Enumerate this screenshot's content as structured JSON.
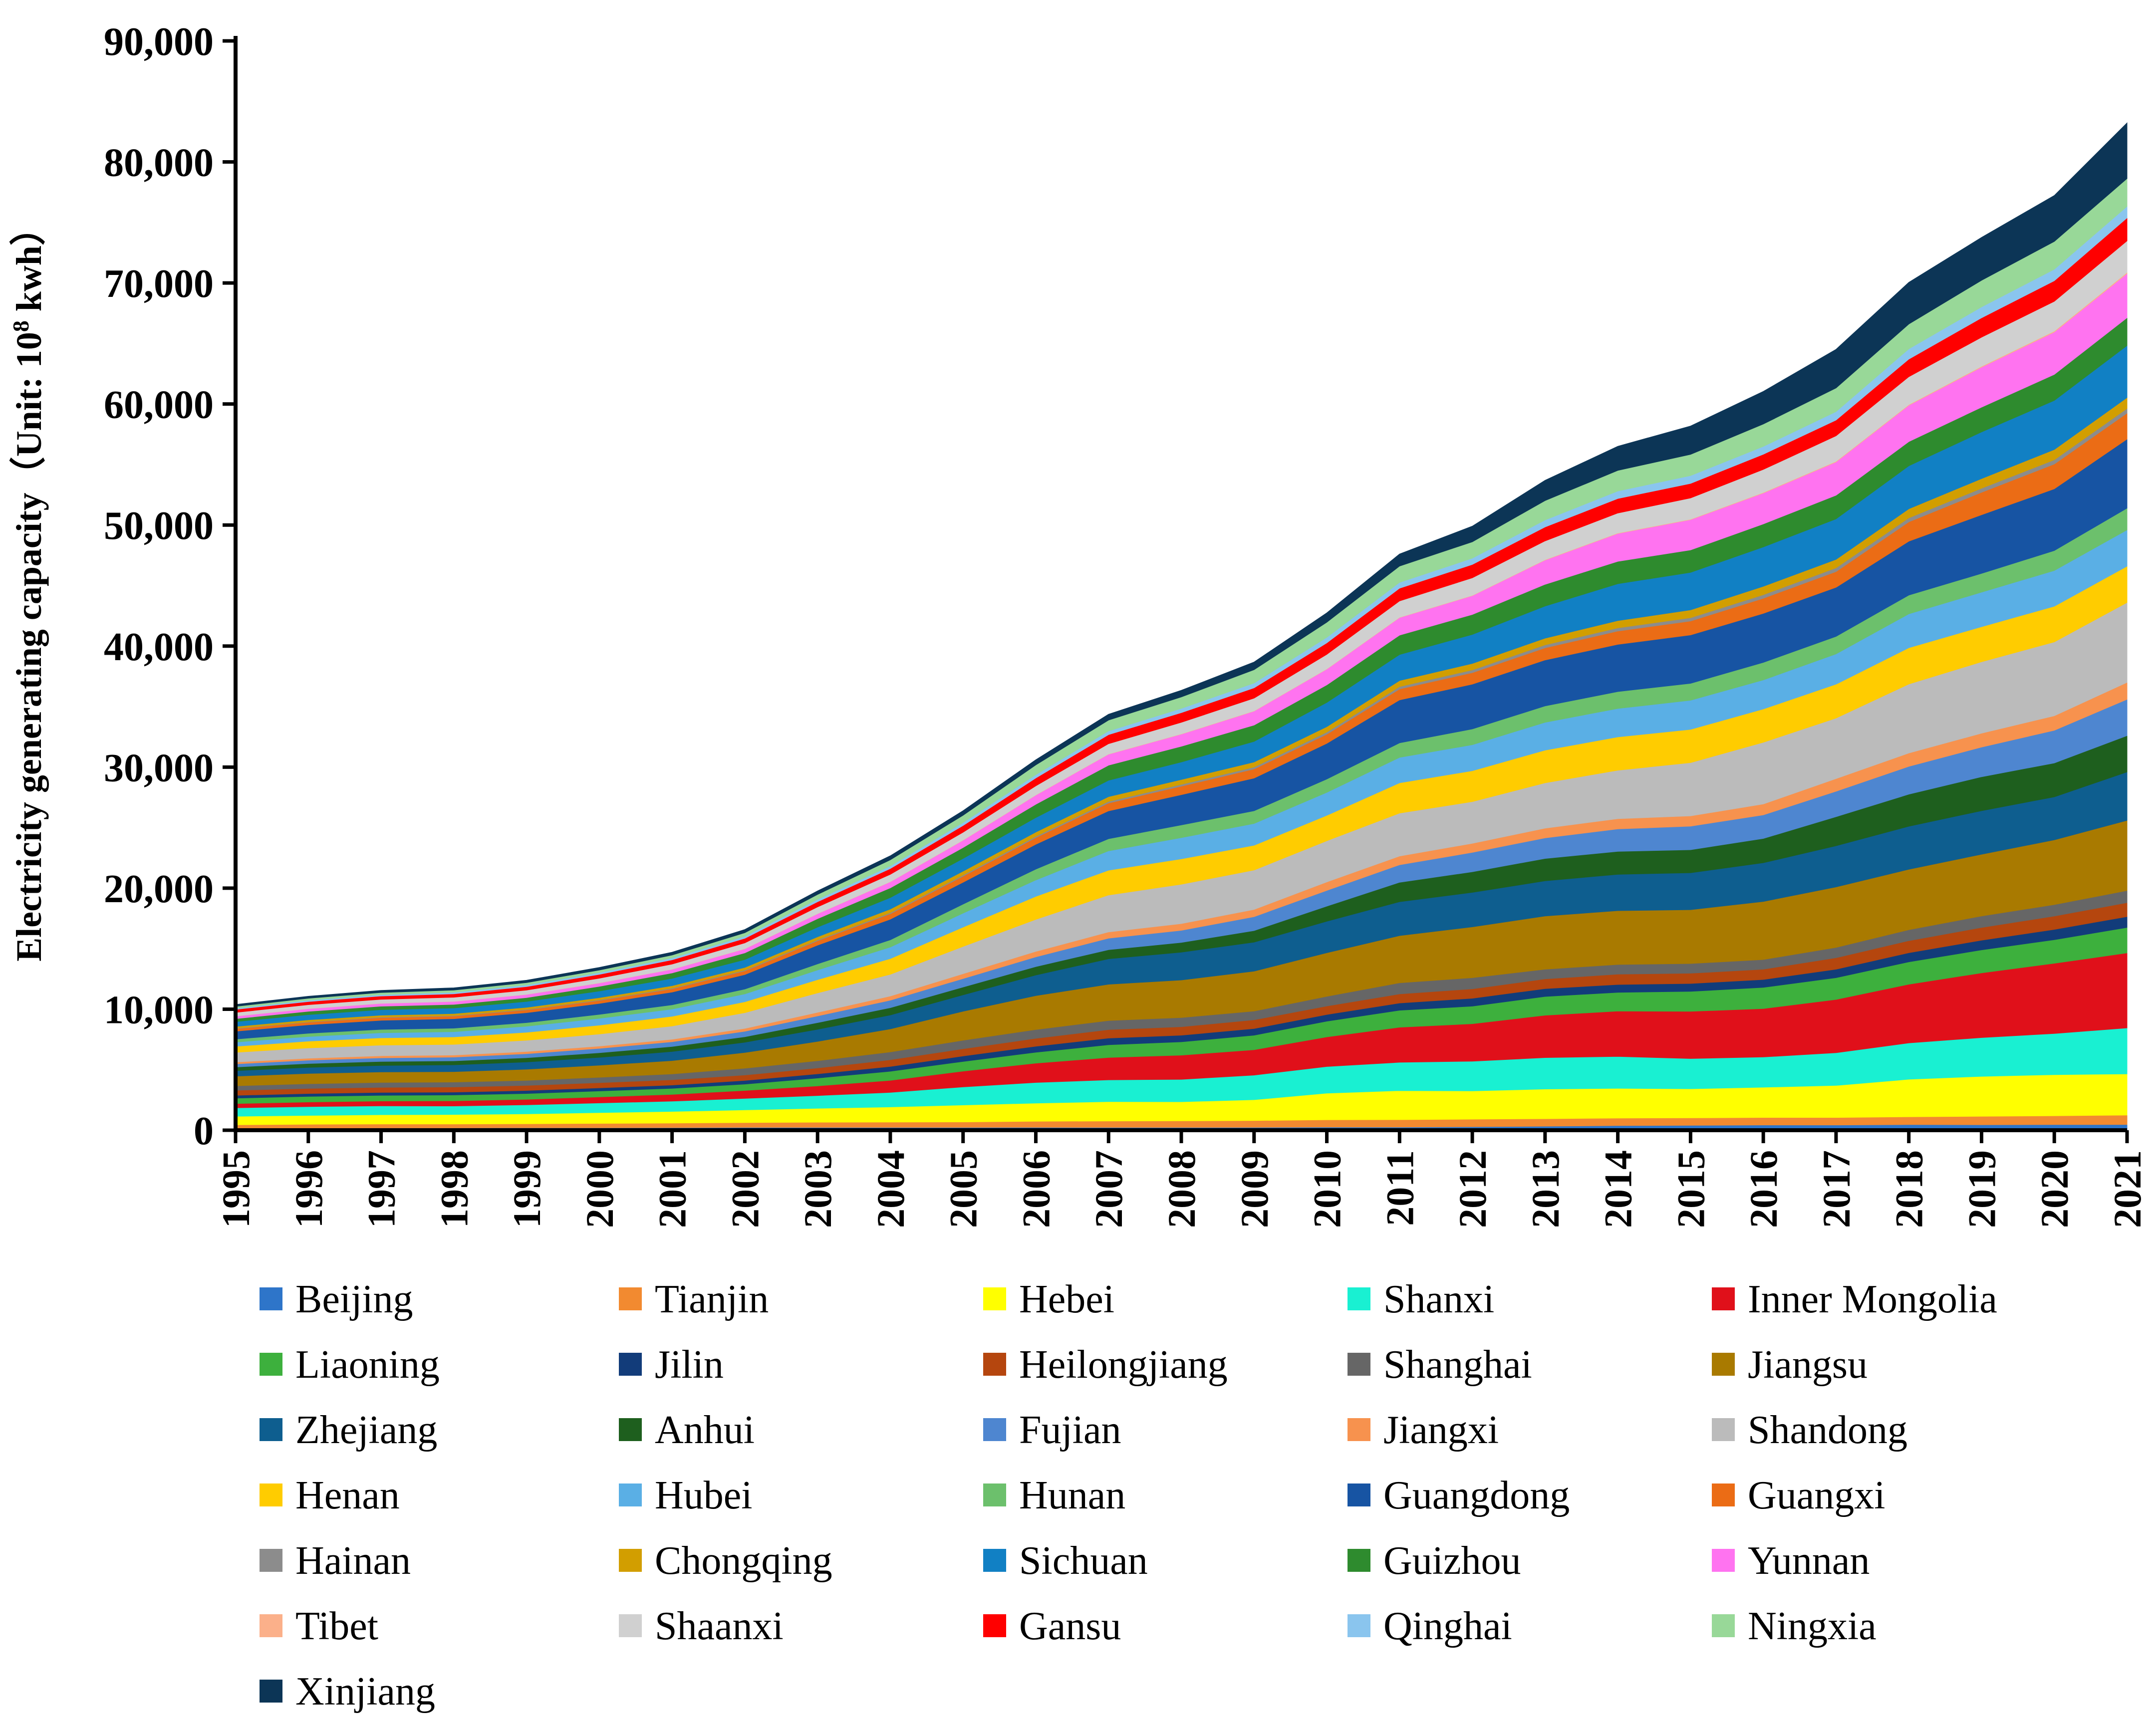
{
  "chart_data": {
    "type": "area",
    "stacked": true,
    "title": "",
    "xlabel": "",
    "ylabel": "Electricity generating capacity（Unit: 10",
    "ylabel_sup": "8",
    "ylabel_tail": " kwh）",
    "ylim": [
      0,
      90000
    ],
    "yticks": [
      0,
      10000,
      20000,
      30000,
      40000,
      50000,
      60000,
      70000,
      80000,
      90000
    ],
    "ytick_labels": [
      "0",
      "10,000",
      "20,000",
      "30,000",
      "40,000",
      "50,000",
      "60,000",
      "70,000",
      "80,000",
      "90,000"
    ],
    "grid": false,
    "legend_position": "bottom",
    "x": [
      "1995",
      "1996",
      "1997",
      "1998",
      "1999",
      "2000",
      "2001",
      "2002",
      "2003",
      "2004",
      "2005",
      "2006",
      "2007",
      "2008",
      "2009",
      "2010",
      "2011",
      "2012",
      "2013",
      "2014",
      "2015",
      "2016",
      "2017",
      "2018",
      "2019",
      "2020",
      "2021"
    ],
    "series": [
      {
        "name": "Beijing",
        "color": "#2E75C9",
        "values": [
          170,
          180,
          190,
          190,
          200,
          200,
          210,
          230,
          230,
          230,
          230,
          240,
          230,
          230,
          240,
          260,
          260,
          290,
          330,
          380,
          400,
          430,
          430,
          460,
          450,
          460,
          470
        ]
      },
      {
        "name": "Tianjin",
        "color": "#F28A30",
        "values": [
          280,
          310,
          320,
          320,
          330,
          360,
          380,
          400,
          430,
          440,
          450,
          500,
          530,
          540,
          560,
          600,
          610,
          620,
          620,
          620,
          620,
          620,
          620,
          650,
          700,
          730,
          780
        ]
      },
      {
        "name": "Hebei",
        "color": "#FFFF00",
        "values": [
          700,
          730,
          770,
          790,
          820,
          890,
          960,
          1050,
          1150,
          1250,
          1400,
          1500,
          1600,
          1580,
          1720,
          2200,
          2400,
          2340,
          2450,
          2460,
          2400,
          2500,
          2650,
          3100,
          3300,
          3400,
          3400
        ]
      },
      {
        "name": "Shanxi",
        "color": "#19F0D2",
        "values": [
          700,
          730,
          730,
          700,
          750,
          800,
          850,
          950,
          1050,
          1200,
          1500,
          1700,
          1800,
          1850,
          2030,
          2200,
          2340,
          2450,
          2600,
          2630,
          2500,
          2500,
          2700,
          3000,
          3200,
          3400,
          3800
        ]
      },
      {
        "name": "Inner Mongolia",
        "color": "#E0101A",
        "values": [
          350,
          380,
          400,
          430,
          450,
          500,
          560,
          650,
          800,
          1000,
          1300,
          1600,
          1850,
          2000,
          2100,
          2450,
          2900,
          3100,
          3500,
          3750,
          3900,
          4000,
          4400,
          4850,
          5350,
          5800,
          6200
        ]
      },
      {
        "name": "Liaoning",
        "color": "#3DB03D",
        "values": [
          450,
          460,
          470,
          480,
          480,
          490,
          500,
          530,
          650,
          750,
          800,
          900,
          1050,
          1100,
          1200,
          1300,
          1400,
          1450,
          1550,
          1550,
          1650,
          1750,
          1800,
          1850,
          1900,
          1950,
          2100
        ]
      },
      {
        "name": "Jilin",
        "color": "#123C7A",
        "values": [
          230,
          240,
          240,
          240,
          250,
          260,
          270,
          300,
          350,
          400,
          450,
          500,
          550,
          550,
          550,
          550,
          600,
          650,
          650,
          650,
          650,
          650,
          700,
          750,
          800,
          850,
          900
        ]
      },
      {
        "name": "Heilongjiang",
        "color": "#B5460E",
        "values": [
          420,
          420,
          420,
          420,
          420,
          430,
          440,
          450,
          480,
          550,
          600,
          650,
          700,
          700,
          720,
          700,
          750,
          780,
          800,
          850,
          850,
          850,
          950,
          1000,
          1050,
          1100,
          1150
        ]
      },
      {
        "name": "Shanghai",
        "color": "#666666",
        "values": [
          370,
          390,
          410,
          410,
          420,
          440,
          480,
          560,
          600,
          650,
          700,
          730,
          750,
          760,
          720,
          800,
          920,
          920,
          800,
          800,
          800,
          800,
          850,
          900,
          950,
          950,
          1000
        ]
      },
      {
        "name": "Jiangsu",
        "color": "#A97A00",
        "values": [
          800,
          850,
          860,
          860,
          920,
          1000,
          1100,
          1300,
          1600,
          1900,
          2400,
          2800,
          3000,
          3100,
          3300,
          3600,
          3900,
          4200,
          4400,
          4450,
          4450,
          4800,
          5000,
          5000,
          5100,
          5350,
          5800
        ]
      },
      {
        "name": "Zhejiang",
        "color": "#0E5E8F",
        "values": [
          450,
          500,
          540,
          560,
          600,
          650,
          750,
          850,
          1000,
          1150,
          1350,
          1700,
          2100,
          2300,
          2400,
          2600,
          2800,
          2850,
          2900,
          3000,
          3050,
          3200,
          3400,
          3550,
          3600,
          3550,
          4000
        ]
      },
      {
        "name": "Anhui",
        "color": "#1E5F1E",
        "values": [
          300,
          320,
          330,
          330,
          350,
          380,
          420,
          450,
          550,
          600,
          650,
          700,
          750,
          800,
          950,
          1250,
          1600,
          1700,
          1850,
          1900,
          1900,
          2000,
          2400,
          2650,
          2800,
          2800,
          3000
        ]
      },
      {
        "name": "Fujian",
        "color": "#4E86D0",
        "values": [
          260,
          280,
          300,
          310,
          330,
          360,
          390,
          450,
          550,
          620,
          700,
          800,
          950,
          1000,
          1150,
          1300,
          1450,
          1600,
          1700,
          1850,
          1950,
          1950,
          2100,
          2300,
          2450,
          2700,
          3000
        ]
      },
      {
        "name": "Jiangxi",
        "color": "#F7924E",
        "values": [
          150,
          160,
          170,
          170,
          180,
          190,
          200,
          240,
          300,
          340,
          400,
          450,
          520,
          560,
          600,
          700,
          720,
          750,
          800,
          850,
          850,
          900,
          1050,
          1100,
          1150,
          1200,
          1400
        ]
      },
      {
        "name": "Shandong",
        "color": "#BBBBBB",
        "values": [
          800,
          850,
          880,
          880,
          930,
          1000,
          1100,
          1300,
          1600,
          1800,
          2250,
          2650,
          3050,
          3250,
          3250,
          3400,
          3550,
          3450,
          3750,
          4000,
          4400,
          5100,
          5000,
          5700,
          5900,
          6100,
          6600
        ]
      },
      {
        "name": "Henan",
        "color": "#FFCC00",
        "values": [
          500,
          560,
          600,
          620,
          660,
          730,
          800,
          900,
          1100,
          1300,
          1600,
          1900,
          2050,
          2100,
          2050,
          2100,
          2500,
          2550,
          2700,
          2750,
          2750,
          2750,
          2800,
          3000,
          2900,
          2950,
          3000
        ]
      },
      {
        "name": "Hubei",
        "color": "#5AAFE5",
        "values": [
          350,
          380,
          420,
          430,
          500,
          560,
          600,
          650,
          800,
          950,
          1150,
          1350,
          1600,
          1750,
          1800,
          1900,
          2100,
          2150,
          2300,
          2350,
          2400,
          2400,
          2500,
          2800,
          2850,
          2950,
          3000
        ]
      },
      {
        "name": "Hunan",
        "color": "#6CC06C",
        "values": [
          250,
          270,
          280,
          290,
          300,
          330,
          350,
          400,
          500,
          600,
          750,
          900,
          1000,
          1050,
          1050,
          1100,
          1200,
          1300,
          1350,
          1400,
          1400,
          1450,
          1450,
          1550,
          1550,
          1650,
          1800
        ]
      },
      {
        "name": "Guangdong",
        "color": "#1754A3",
        "values": [
          650,
          700,
          750,
          780,
          820,
          900,
          1050,
          1200,
          1550,
          1700,
          1800,
          2050,
          2300,
          2500,
          2700,
          2950,
          3550,
          3700,
          3800,
          3900,
          4000,
          4050,
          4050,
          4450,
          4850,
          5100,
          5700
        ]
      },
      {
        "name": "Guangxi",
        "color": "#EB6C15",
        "values": [
          200,
          210,
          220,
          220,
          230,
          250,
          270,
          300,
          360,
          450,
          500,
          550,
          650,
          700,
          750,
          750,
          900,
          950,
          1000,
          1100,
          1150,
          1250,
          1300,
          1600,
          1850,
          2050,
          2150
        ]
      },
      {
        "name": "Hainan",
        "color": "#8C8C8C",
        "values": [
          40,
          40,
          45,
          45,
          45,
          50,
          60,
          70,
          80,
          90,
          100,
          110,
          130,
          150,
          160,
          180,
          200,
          230,
          250,
          260,
          270,
          290,
          310,
          330,
          340,
          350,
          380
        ]
      },
      {
        "name": "Chongqing",
        "color": "#D29E00",
        "values": [
          150,
          160,
          160,
          160,
          170,
          180,
          200,
          220,
          250,
          300,
          320,
          350,
          400,
          400,
          420,
          450,
          500,
          530,
          550,
          600,
          650,
          700,
          700,
          750,
          800,
          850,
          900
        ]
      },
      {
        "name": "Sichuan",
        "color": "#1180C4",
        "values": [
          400,
          430,
          450,
          460,
          480,
          550,
          600,
          650,
          800,
          950,
          1050,
          1200,
          1350,
          1450,
          1700,
          2000,
          2150,
          2400,
          2650,
          3050,
          3100,
          3250,
          3350,
          3550,
          3850,
          4050,
          4300
        ]
      },
      {
        "name": "Guizhou",
        "color": "#2E8B2E",
        "values": [
          250,
          270,
          290,
          300,
          320,
          380,
          450,
          550,
          700,
          800,
          900,
          1100,
          1250,
          1300,
          1350,
          1450,
          1600,
          1650,
          1800,
          1850,
          1850,
          1900,
          1950,
          2000,
          2050,
          2150,
          2300
        ]
      },
      {
        "name": "Yunnan",
        "color": "#FF73F0",
        "values": [
          200,
          220,
          230,
          240,
          260,
          280,
          300,
          330,
          400,
          500,
          600,
          750,
          900,
          1000,
          1150,
          1300,
          1450,
          1550,
          2000,
          2300,
          2500,
          2550,
          2750,
          3000,
          3300,
          3500,
          3650
        ]
      },
      {
        "name": "Tibet",
        "color": "#FBB08A",
        "values": [
          10,
          10,
          10,
          10,
          10,
          12,
          12,
          14,
          15,
          16,
          18,
          20,
          22,
          25,
          25,
          25,
          28,
          30,
          35,
          40,
          45,
          55,
          60,
          65,
          80,
          90,
          100
        ]
      },
      {
        "name": "Shaanxi",
        "color": "#D0D0D0",
        "values": [
          300,
          320,
          330,
          340,
          350,
          380,
          420,
          480,
          550,
          600,
          650,
          750,
          850,
          950,
          1050,
          1200,
          1350,
          1450,
          1550,
          1650,
          1750,
          1900,
          2100,
          2300,
          2400,
          2450,
          2600
        ]
      },
      {
        "name": "Gansu",
        "color": "#FF0000",
        "values": [
          250,
          260,
          270,
          280,
          290,
          320,
          350,
          380,
          430,
          480,
          550,
          650,
          750,
          800,
          850,
          950,
          1050,
          1100,
          1150,
          1200,
          1200,
          1250,
          1300,
          1450,
          1600,
          1700,
          1900
        ]
      },
      {
        "name": "Qinghai",
        "color": "#8AC5EE",
        "values": [
          100,
          110,
          120,
          130,
          140,
          150,
          160,
          180,
          200,
          220,
          250,
          280,
          300,
          350,
          400,
          450,
          480,
          520,
          580,
          620,
          650,
          650,
          700,
          850,
          900,
          950,
          950
        ]
      },
      {
        "name": "Ningxia",
        "color": "#98D898",
        "values": [
          150,
          160,
          170,
          180,
          190,
          210,
          240,
          280,
          400,
          500,
          600,
          800,
          900,
          950,
          1100,
          1250,
          1350,
          1350,
          1600,
          1700,
          1750,
          1850,
          1950,
          2050,
          2200,
          2300,
          2300
        ]
      },
      {
        "name": "Xinjiang",
        "color": "#0C3556",
        "values": [
          160,
          170,
          180,
          190,
          200,
          220,
          240,
          270,
          300,
          340,
          380,
          430,
          490,
          550,
          640,
          780,
          1000,
          1300,
          1680,
          2000,
          2350,
          2700,
          3200,
          3450,
          3550,
          3800,
          4600
        ]
      }
    ]
  }
}
